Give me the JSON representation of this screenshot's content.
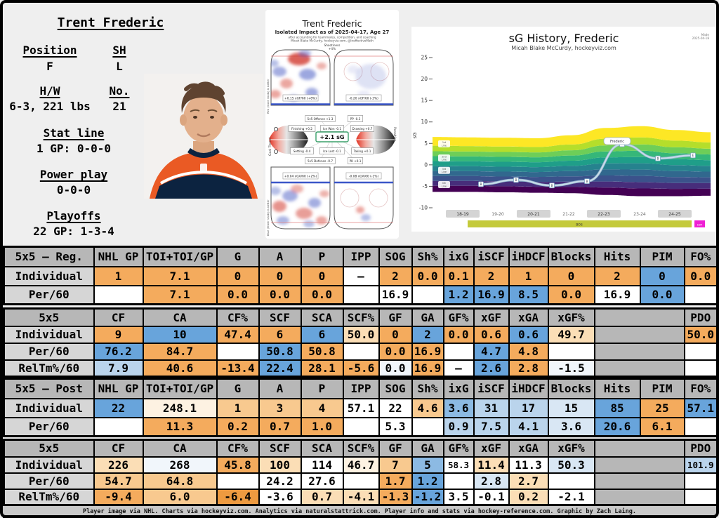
{
  "player": {
    "name": "Trent Frederic",
    "position_label": "Position",
    "position": "F",
    "shoots_label": "SH",
    "shoots": "L",
    "hw_label": "H/W",
    "hw": "6-3, 221 lbs",
    "number_label": "No.",
    "number": "21",
    "statline_label": "Stat line",
    "statline": "1 GP: 0-0-0",
    "powerplay_label": "Power play",
    "powerplay": "0-0-0",
    "playoffs_label": "Playoffs",
    "playoffs": "22 GP: 1-3-4"
  },
  "impact_chart": {
    "title": "Trent Frederic",
    "subtitle": "Isolated Impact as of 2025-04-17, Age 27",
    "note1": "after accounting for teammates, competition, and coaching",
    "note2": "Micah Blake McCurdy, hockeyviz.com, @IneffectiveMath",
    "shootiness_label": "Shootiness",
    "shootiness_value": "+4%",
    "offense_left_caption": "+0.15 xGF/60 (+8%)",
    "offense_right_caption": "-0.20 xGF/60 (-3%)",
    "defense_left_caption": "+0.04 xGA/60 (+2%)",
    "defense_right_caption": "-0.08 xGA/60 (-1%)",
    "offense_axis_label": "Red (more shots) is better",
    "defense_axis_label": "Blue (fewer shots) is better",
    "violin_left_label": "Goal Threat",
    "violin_right_label": "Penalties",
    "center_value": "+2.1 sG",
    "factors": [
      {
        "label": "5v5 Offence +1.3"
      },
      {
        "label": "PP -0.3"
      },
      {
        "label": "Finishing +0.2"
      },
      {
        "label": "Ice Won -0.1"
      },
      {
        "label": "Drawing +0.7"
      },
      {
        "label": "Setting -0.4"
      },
      {
        "label": "Ice Lost -0.1"
      },
      {
        "label": "Taking +0.1"
      },
      {
        "label": "5v5 Defence -0.7"
      },
      {
        "label": "PK +0.1"
      }
    ]
  },
  "chart_data": {
    "type": "area",
    "title": "sG History, Frederic",
    "subtitle": "Micah Blake McCurdy, hockeyviz.com",
    "made_note": [
      "Made",
      "2025-04-18"
    ],
    "ylabel": "sG",
    "ylim": [
      -10,
      25
    ],
    "yticks": [
      25,
      20,
      15,
      10,
      5,
      0,
      -5,
      -10
    ],
    "seasons": [
      "18-19",
      "19-20",
      "20-21",
      "21-22",
      "22-23",
      "23-24",
      "24-25"
    ],
    "sg_values": [
      -4.5,
      -3.5,
      -4.8,
      -3.8,
      4.8,
      1.5,
      2.2
    ],
    "marker_letters": [
      "B",
      "B",
      "B",
      "B",
      "",
      "B",
      "E"
    ],
    "peak_label": "Frederic",
    "band_labels": [
      [
        "1st",
        "Line"
      ],
      [
        "2nd",
        "Line"
      ],
      [
        "3rd",
        "Line"
      ],
      [
        "4th",
        "Line"
      ]
    ],
    "band_label_values": [
      4.9,
      1.6,
      -1.3,
      -4.6
    ],
    "envelope_top": [
      6.5,
      6.4,
      6.3,
      6.2,
      6.9,
      8.6,
      9.0,
      8.1,
      7.6
    ],
    "envelope_bottom": [
      -6.3,
      -6.3,
      -6.4,
      -6.5,
      -6.6,
      -7.0,
      -7.3,
      -7.3,
      -7.2
    ],
    "band_colors": [
      "#440154",
      "#472d7b",
      "#3b528b",
      "#31688e",
      "#26828e",
      "#1f9e89",
      "#35b779",
      "#6ece58",
      "#b5de2b",
      "#fde725"
    ],
    "band_weights": [
      0.11,
      0.09,
      0.09,
      0.09,
      0.09,
      0.09,
      0.09,
      0.09,
      0.1,
      0.16
    ],
    "teams": [
      {
        "label": "BOS",
        "color": "#c4ca3b"
      },
      {
        "label": "EDM",
        "color": "#ef1fd4"
      }
    ],
    "line_color": "#c9dcea"
  },
  "palette": {
    "o4": "#ED9A40",
    "o3": "#F4AB5D",
    "o2": "#F8C98F",
    "o1": "#FBDEB6",
    "o0": "#FDF2E2",
    "n": "#FFFFFF",
    "b0": "#F1F6FB",
    "b1": "#D9E7F4",
    "b2": "#BAD4EC",
    "b3": "#8CBAE3",
    "b4": "#68A4DB",
    "g": "#B7B7B7"
  },
  "tables": [
    {
      "title": "5x5 – Reg.",
      "headers": [
        [
          "NHL GP",
          1
        ],
        [
          "TOI+TOI/GP",
          1
        ],
        [
          "G",
          1
        ],
        [
          "A",
          1
        ],
        [
          "P",
          1
        ],
        [
          "IPP",
          1
        ],
        [
          "SOG",
          1
        ],
        [
          "Sh%",
          1
        ],
        [
          "ixG",
          1
        ],
        [
          "iSCF",
          1
        ],
        [
          "iHDCF",
          1
        ],
        [
          "Blocks",
          1
        ],
        [
          "Hits",
          1
        ],
        [
          "PIM",
          1
        ],
        [
          "FO%",
          1
        ]
      ],
      "rows": [
        {
          "label": "Individual",
          "cells": [
            [
              "1",
              "o3"
            ],
            [
              "7.1",
              "o3"
            ],
            [
              "0",
              "o3"
            ],
            [
              "0",
              "o3"
            ],
            [
              "0",
              "o3"
            ],
            [
              "–",
              "n"
            ],
            [
              "2",
              "o3"
            ],
            [
              "0.0",
              "o3"
            ],
            [
              "0.1",
              "o3"
            ],
            [
              "2",
              "o3"
            ],
            [
              "1",
              "o3"
            ],
            [
              "0",
              "o3"
            ],
            [
              "2",
              "o3"
            ],
            [
              "0",
              "b4"
            ],
            [
              "0.0",
              "o3"
            ]
          ]
        },
        {
          "label": "Per/60",
          "cells": [
            [
              "",
              "n"
            ],
            [
              "7.1",
              "o3"
            ],
            [
              "0.0",
              "o3"
            ],
            [
              "0.0",
              "o3"
            ],
            [
              "0.0",
              "o3"
            ],
            [
              "",
              "n"
            ],
            [
              "16.9",
              "n"
            ],
            [
              "",
              "n"
            ],
            [
              "1.2",
              "b4"
            ],
            [
              "16.9",
              "b4"
            ],
            [
              "8.5",
              "b4"
            ],
            [
              "0.0",
              "o3"
            ],
            [
              "16.9",
              "n"
            ],
            [
              "0.0",
              "b4"
            ],
            [
              "",
              "n"
            ]
          ]
        }
      ]
    },
    {
      "title": "5x5",
      "headers": [
        [
          "CF",
          1
        ],
        [
          "CA",
          1
        ],
        [
          "CF%",
          1
        ],
        [
          "SCF",
          1
        ],
        [
          "SCA",
          1
        ],
        [
          "SCF%",
          1
        ],
        [
          "GF",
          1
        ],
        [
          "GA",
          1
        ],
        [
          "GF%",
          1
        ],
        [
          "xGF",
          1
        ],
        [
          "xGA",
          1
        ],
        [
          "xGF%",
          1
        ],
        [
          "",
          2
        ],
        [
          "PDO",
          1
        ]
      ],
      "rows": [
        {
          "label": "Individual",
          "cells": [
            [
              "9",
              "o3"
            ],
            [
              "10",
              "b4"
            ],
            [
              "47.4",
              "o3"
            ],
            [
              "6",
              "o3"
            ],
            [
              "6",
              "b4"
            ],
            [
              "50.0",
              "o1"
            ],
            [
              "0",
              "o3"
            ],
            [
              "2",
              "b4"
            ],
            [
              "0.0",
              "o3"
            ],
            [
              "0.6",
              "o3"
            ],
            [
              "0.6",
              "b4"
            ],
            [
              "49.7",
              "o1"
            ],
            [
              "",
              "g",
              2
            ],
            [
              "50.0",
              "o3"
            ]
          ]
        },
        {
          "label": "Per/60",
          "cells": [
            [
              "76.2",
              "b4"
            ],
            [
              "84.7",
              "o3"
            ],
            [
              "",
              "n"
            ],
            [
              "50.8",
              "b4"
            ],
            [
              "50.8",
              "o3"
            ],
            [
              "",
              "n"
            ],
            [
              "0.0",
              "o3"
            ],
            [
              "16.9",
              "o3"
            ],
            [
              "",
              "n"
            ],
            [
              "4.7",
              "b4"
            ],
            [
              "4.8",
              "o3"
            ],
            [
              "",
              "n"
            ],
            [
              "",
              "g",
              2
            ],
            [
              "",
              "n"
            ]
          ]
        },
        {
          "label": "RelTm%/60",
          "cells": [
            [
              "7.9",
              "b2"
            ],
            [
              "40.6",
              "o3"
            ],
            [
              "-13.4",
              "o3"
            ],
            [
              "22.4",
              "b4"
            ],
            [
              "28.1",
              "o3"
            ],
            [
              "-5.6",
              "o3"
            ],
            [
              "0.0",
              "b0"
            ],
            [
              "16.9",
              "o3"
            ],
            [
              "–",
              "n"
            ],
            [
              "2.6",
              "b4"
            ],
            [
              "2.8",
              "o3"
            ],
            [
              "-1.5",
              "b0"
            ],
            [
              "",
              "g",
              2
            ],
            [
              "",
              "n"
            ]
          ]
        }
      ]
    },
    {
      "title": "5x5 – Post",
      "headers": [
        [
          "NHL GP",
          1
        ],
        [
          "TOI+TOI/GP",
          1
        ],
        [
          "G",
          1
        ],
        [
          "A",
          1
        ],
        [
          "P",
          1
        ],
        [
          "IPP",
          1
        ],
        [
          "SOG",
          1
        ],
        [
          "Sh%",
          1
        ],
        [
          "ixG",
          1
        ],
        [
          "iSCF",
          1
        ],
        [
          "iHDCF",
          1
        ],
        [
          "Blocks",
          1
        ],
        [
          "Hits",
          1
        ],
        [
          "PIM",
          1
        ],
        [
          "FO%",
          1
        ]
      ],
      "rows": [
        {
          "label": "Individual",
          "cells": [
            [
              "22",
              "b4"
            ],
            [
              "248.1",
              "o0"
            ],
            [
              "1",
              "o2"
            ],
            [
              "3",
              "o2"
            ],
            [
              "4",
              "o2"
            ],
            [
              "57.1",
              "n"
            ],
            [
              "22",
              "n"
            ],
            [
              "4.6",
              "o2"
            ],
            [
              "3.6",
              "b3"
            ],
            [
              "31",
              "b2"
            ],
            [
              "17",
              "b2"
            ],
            [
              "15",
              "b1"
            ],
            [
              "85",
              "b4"
            ],
            [
              "25",
              "o3"
            ],
            [
              "57.1",
              "b4"
            ]
          ]
        },
        {
          "label": "Per/60",
          "cells": [
            [
              "",
              "n"
            ],
            [
              "11.3",
              "o3"
            ],
            [
              "0.2",
              "o3"
            ],
            [
              "0.7",
              "o3"
            ],
            [
              "1.0",
              "o3"
            ],
            [
              "",
              "n"
            ],
            [
              "5.3",
              "n"
            ],
            [
              "",
              "n"
            ],
            [
              "0.9",
              "b2"
            ],
            [
              "7.5",
              "b2"
            ],
            [
              "4.1",
              "b2"
            ],
            [
              "3.6",
              "b1"
            ],
            [
              "20.6",
              "b4"
            ],
            [
              "6.1",
              "o3"
            ],
            [
              "",
              "n"
            ]
          ]
        }
      ]
    },
    {
      "title": "5x5",
      "headers": [
        [
          "CF",
          1
        ],
        [
          "CA",
          1
        ],
        [
          "CF%",
          1
        ],
        [
          "SCF",
          1
        ],
        [
          "SCA",
          1
        ],
        [
          "SCF%",
          1
        ],
        [
          "GF",
          1
        ],
        [
          "GA",
          1
        ],
        [
          "GF%",
          1
        ],
        [
          "xGF",
          1
        ],
        [
          "xGA",
          1
        ],
        [
          "xGF%",
          1
        ],
        [
          "",
          2
        ],
        [
          "PDO",
          1
        ]
      ],
      "rows": [
        {
          "label": "Individual",
          "cells": [
            [
              "226",
              "o1"
            ],
            [
              "268",
              "b0"
            ],
            [
              "45.8",
              "o3"
            ],
            [
              "100",
              "o1"
            ],
            [
              "114",
              "n"
            ],
            [
              "46.7",
              "o0"
            ],
            [
              "7",
              "o2"
            ],
            [
              "5",
              "b3"
            ],
            [
              "58.3",
              "n"
            ],
            [
              "11.4",
              "o1"
            ],
            [
              "11.3",
              "n"
            ],
            [
              "50.3",
              "b1"
            ],
            [
              "",
              "g",
              2
            ],
            [
              "101.9",
              "b2"
            ]
          ]
        },
        {
          "label": "Per/60",
          "cells": [
            [
              "54.7",
              "o2"
            ],
            [
              "64.8",
              "o2"
            ],
            [
              "",
              "n"
            ],
            [
              "24.2",
              "n"
            ],
            [
              "27.6",
              "n"
            ],
            [
              "",
              "n"
            ],
            [
              "1.7",
              "o3"
            ],
            [
              "1.2",
              "b4"
            ],
            [
              "",
              "n"
            ],
            [
              "2.8",
              "b1"
            ],
            [
              "2.7",
              "o1"
            ],
            [
              "",
              "n"
            ],
            [
              "",
              "g",
              2
            ],
            [
              "",
              "n"
            ]
          ]
        },
        {
          "label": "RelTm%/60",
          "cells": [
            [
              "-9.4",
              "o3"
            ],
            [
              "6.0",
              "o2"
            ],
            [
              "-6.4",
              "o4"
            ],
            [
              "-3.6",
              "n"
            ],
            [
              "0.7",
              "o1"
            ],
            [
              "-4.1",
              "o1"
            ],
            [
              "-1.3",
              "o3"
            ],
            [
              "-1.2",
              "b4"
            ],
            [
              "3.5",
              "n"
            ],
            [
              "-0.1",
              "n"
            ],
            [
              "0.2",
              "o1"
            ],
            [
              "-2.1",
              "n"
            ],
            [
              "",
              "g",
              2
            ],
            [
              "",
              "n"
            ]
          ]
        }
      ]
    }
  ],
  "footer": {
    "credits": "Player image via NHL. Charts via hockeyviz.com. Analytics via naturalstattrick.com. Player info and stats via hockey-reference.com. Graphic by Zach Laing."
  }
}
